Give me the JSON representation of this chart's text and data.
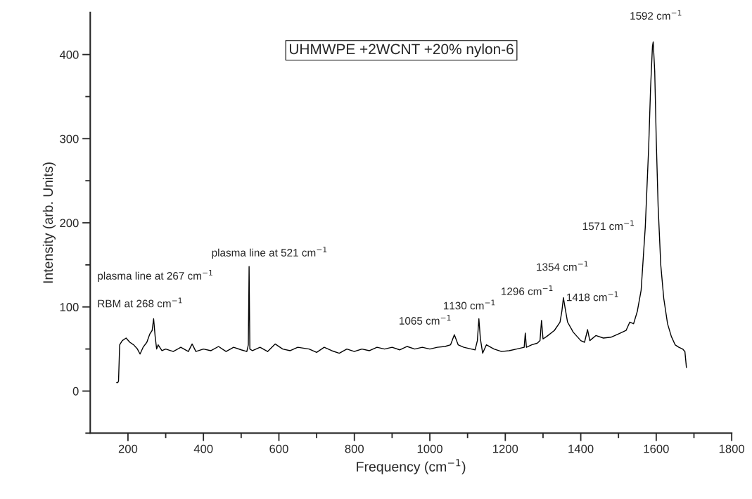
{
  "chart_data": {
    "type": "line",
    "title": "UHMWPE +2WCNT +20% nylon-6",
    "xlabel": "Frequency (cm$^{−1}$)",
    "ylabel": "Intensity (arb. Units)",
    "xlim": [
      100,
      1800
    ],
    "xticks": [
      200,
      400,
      600,
      800,
      1000,
      1200,
      1400,
      1600,
      1800
    ],
    "ylim": [
      -50,
      450
    ],
    "yticks": [
      0,
      100,
      200,
      300,
      400
    ],
    "series": [
      {
        "color": "#000000",
        "x": [
          170,
          173,
          175,
          178,
          185,
          195,
          205,
          215,
          225,
          232,
          240,
          250,
          258,
          264,
          268,
          272,
          276,
          280,
          290,
          300,
          320,
          340,
          360,
          370,
          380,
          400,
          420,
          440,
          460,
          480,
          500,
          515,
          519,
          521,
          523,
          530,
          550,
          570,
          590,
          610,
          630,
          650,
          680,
          700,
          720,
          740,
          760,
          780,
          800,
          820,
          840,
          860,
          880,
          900,
          920,
          940,
          960,
          980,
          1000,
          1020,
          1040,
          1055,
          1065,
          1075,
          1090,
          1110,
          1120,
          1126,
          1130,
          1134,
          1140,
          1150,
          1170,
          1190,
          1210,
          1230,
          1250,
          1253,
          1256,
          1270,
          1285,
          1292,
          1296,
          1300,
          1310,
          1330,
          1345,
          1350,
          1354,
          1358,
          1365,
          1380,
          1400,
          1410,
          1418,
          1424,
          1440,
          1460,
          1480,
          1500,
          1520,
          1530,
          1540,
          1550,
          1560,
          1571,
          1580,
          1585,
          1590,
          1592,
          1596,
          1600,
          1605,
          1612,
          1620,
          1630,
          1640,
          1650,
          1660,
          1670,
          1676,
          1680
        ],
        "values": [
          10,
          10,
          12,
          55,
          60,
          63,
          58,
          55,
          50,
          44,
          52,
          58,
          68,
          72,
          86,
          65,
          50,
          55,
          48,
          50,
          47,
          52,
          47,
          56,
          47,
          50,
          48,
          53,
          47,
          52,
          49,
          47,
          55,
          148,
          50,
          48,
          52,
          47,
          56,
          50,
          48,
          52,
          50,
          46,
          52,
          48,
          45,
          50,
          47,
          50,
          48,
          52,
          50,
          52,
          49,
          53,
          50,
          52,
          50,
          52,
          53,
          55,
          67,
          55,
          52,
          50,
          49,
          60,
          86,
          62,
          45,
          55,
          50,
          47,
          48,
          50,
          52,
          69,
          52,
          55,
          57,
          60,
          84,
          62,
          65,
          72,
          82,
          95,
          111,
          100,
          82,
          70,
          60,
          58,
          73,
          60,
          66,
          63,
          64,
          68,
          72,
          82,
          80,
          95,
          120,
          195,
          290,
          360,
          410,
          415,
          380,
          300,
          220,
          150,
          110,
          80,
          65,
          55,
          52,
          50,
          47,
          28
        ]
      }
    ],
    "annotations": [
      "plasma line at 267 cm$^{−1}$",
      "RBM at 268 cm$^{−1}$",
      "plasma line at 521 cm$^{−1}$",
      "1065 cm$^{−1}$",
      "1130 cm$^{−1}$",
      "1296 cm$^{−1}$",
      "1354 cm$^{−1}$",
      "1418 cm$^{−1}$",
      "1571 cm$^{−1}$",
      "1592 cm$^{−1}$"
    ]
  }
}
